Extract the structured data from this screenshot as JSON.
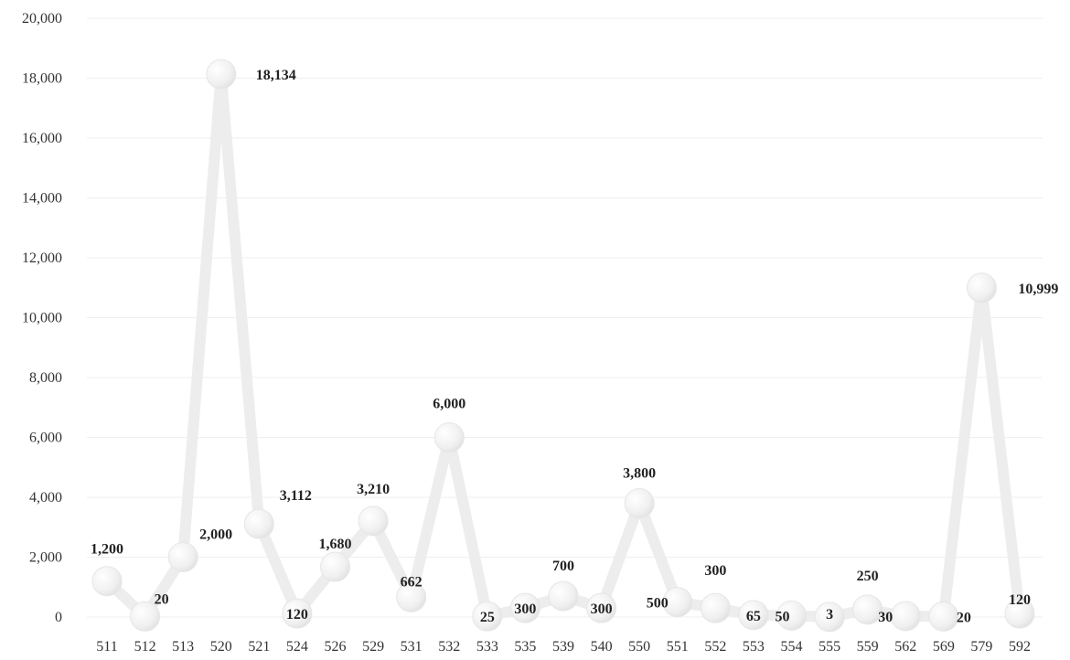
{
  "chart_data": {
    "type": "line",
    "categories": [
      "511",
      "512",
      "513",
      "520",
      "521",
      "524",
      "526",
      "529",
      "531",
      "532",
      "533",
      "535",
      "539",
      "540",
      "550",
      "551",
      "552",
      "553",
      "554",
      "555",
      "559",
      "562",
      "569",
      "579",
      "592"
    ],
    "values": [
      1200,
      20,
      2000,
      18134,
      3112,
      120,
      1680,
      3210,
      662,
      6000,
      25,
      300,
      700,
      300,
      3800,
      500,
      300,
      65,
      50,
      3,
      250,
      30,
      20,
      10999,
      120
    ],
    "data_labels": [
      "1,200",
      "20",
      "2,000",
      "18,134",
      "3,112",
      "120",
      "1,680",
      "3,210",
      "662",
      "6,000",
      "25",
      "300",
      "700",
      "300",
      "3,800",
      "500",
      "300",
      "65",
      "50",
      "3",
      "250",
      "30",
      "20",
      "10,999",
      "120"
    ],
    "y_ticks": [
      "0",
      "2,000",
      "4,000",
      "6,000",
      "8,000",
      "10,000",
      "12,000",
      "14,000",
      "16,000",
      "18,000",
      "20,000"
    ],
    "ylim": [
      0,
      20000
    ],
    "grid": true,
    "legend": "none",
    "colors": {
      "line": "#ededed",
      "marker": "#f2f2f2",
      "marker_highlight": "#ffffff",
      "grid": "#efefef"
    }
  }
}
